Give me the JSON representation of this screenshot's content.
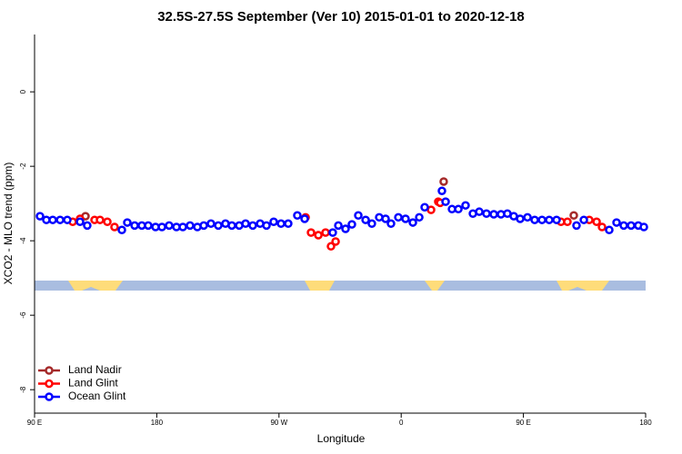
{
  "chart_data": {
    "type": "scatter",
    "title": "32.5S-27.5S September (Ver 10)   2015-01-01 to 2020-12-18",
    "xlabel": "Longitude",
    "ylabel": "XCO2 - MLO trend (ppm)",
    "xlim": [
      90,
      540
    ],
    "ylim": [
      1.54,
      -8.63
    ],
    "xticks": [
      {
        "value": 90,
        "label": "90 E"
      },
      {
        "value": 180,
        "label": "180"
      },
      {
        "value": 270,
        "label": "90 W"
      },
      {
        "value": 360,
        "label": "0"
      },
      {
        "value": 450,
        "label": "90 E"
      },
      {
        "value": 540,
        "label": "180"
      }
    ],
    "yticks": [
      0,
      -2,
      -4,
      -6,
      -8
    ],
    "legend": "bottom-left",
    "series": [
      {
        "name": "Land Nadir",
        "color": "#a52a2a",
        "x": [
          127.5,
          391.3,
          487.1
        ],
        "values": [
          -3.34,
          -2.41,
          -3.32
        ]
      },
      {
        "name": "Land Glint",
        "color": "#ff0000",
        "x": [
          118.1,
          123.5,
          134.2,
          138.2,
          143.6,
          148.9,
          289.6,
          293.6,
          299.0,
          304.3,
          308.3,
          311.7,
          382.0,
          387.3,
          388.7,
          477.7,
          482.4,
          498.5,
          503.9,
          507.9
        ],
        "values": [
          -3.49,
          -3.41,
          -3.44,
          -3.44,
          -3.49,
          -3.63,
          -3.37,
          -3.78,
          -3.85,
          -3.78,
          -4.15,
          -4.02,
          -3.17,
          -2.95,
          -2.98,
          -3.49,
          -3.49,
          -3.44,
          -3.49,
          -3.63
        ]
      },
      {
        "name": "Ocean Glint",
        "color": "#0000ff",
        "x": [
          94.0,
          98.7,
          103.4,
          108.8,
          114.1,
          123.5,
          128.8,
          154.3,
          158.3,
          163.7,
          169.0,
          173.7,
          179.1,
          183.8,
          189.1,
          194.5,
          199.2,
          204.5,
          209.9,
          214.6,
          219.9,
          225.3,
          230.6,
          235.3,
          240.7,
          245.4,
          250.7,
          256.1,
          260.8,
          266.1,
          271.5,
          276.8,
          283.5,
          288.9,
          309.6,
          313.7,
          319.0,
          323.7,
          328.4,
          333.8,
          338.4,
          343.8,
          348.5,
          352.5,
          357.9,
          363.2,
          368.6,
          373.3,
          377.3,
          390.0,
          392.7,
          397.4,
          402.1,
          407.4,
          412.8,
          417.5,
          422.8,
          428.2,
          433.5,
          438.2,
          442.9,
          447.6,
          453.0,
          458.3,
          463.7,
          469.0,
          474.4,
          489.1,
          494.5,
          513.2,
          518.6,
          523.9,
          529.3,
          534.6,
          538.7
        ],
        "values": [
          -3.34,
          -3.44,
          -3.44,
          -3.44,
          -3.44,
          -3.49,
          -3.59,
          -3.71,
          -3.51,
          -3.59,
          -3.59,
          -3.59,
          -3.63,
          -3.63,
          -3.59,
          -3.63,
          -3.63,
          -3.59,
          -3.63,
          -3.59,
          -3.54,
          -3.59,
          -3.54,
          -3.59,
          -3.59,
          -3.54,
          -3.59,
          -3.54,
          -3.59,
          -3.49,
          -3.54,
          -3.54,
          -3.32,
          -3.41,
          -3.78,
          -3.59,
          -3.68,
          -3.56,
          -3.32,
          -3.44,
          -3.54,
          -3.37,
          -3.41,
          -3.54,
          -3.37,
          -3.41,
          -3.51,
          -3.37,
          -3.1,
          -2.66,
          -2.95,
          -3.15,
          -3.15,
          -3.05,
          -3.27,
          -3.22,
          -3.27,
          -3.29,
          -3.29,
          -3.27,
          -3.34,
          -3.41,
          -3.37,
          -3.44,
          -3.44,
          -3.44,
          -3.44,
          -3.59,
          -3.44,
          -3.71,
          -3.51,
          -3.59,
          -3.59,
          -3.59,
          -3.63
        ]
      }
    ]
  }
}
